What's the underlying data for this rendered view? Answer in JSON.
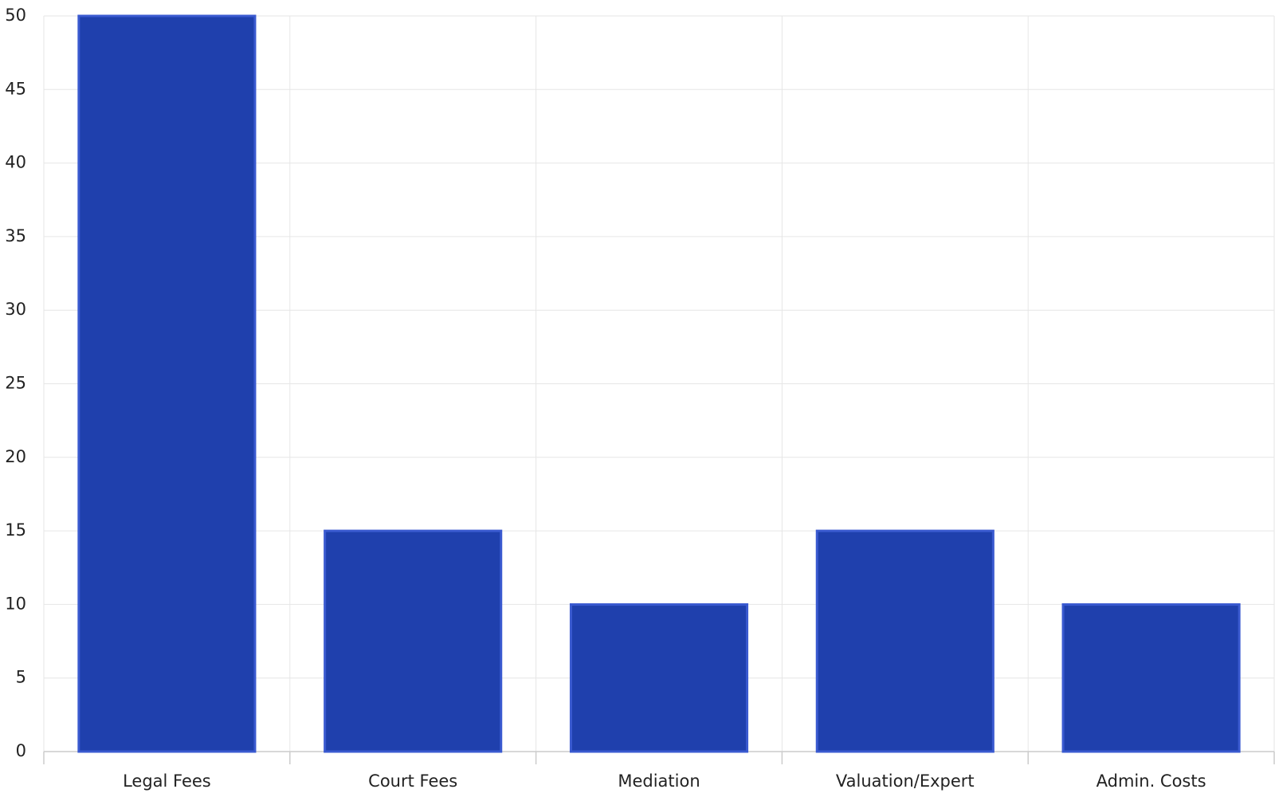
{
  "chart_data": {
    "type": "bar",
    "categories": [
      "Legal Fees",
      "Court Fees",
      "Mediation",
      "Valuation/Expert",
      "Admin. Costs"
    ],
    "values": [
      50,
      15,
      10,
      15,
      10
    ],
    "color": "#1f40ad",
    "ylim": [
      0,
      50
    ],
    "yticks": [
      0,
      5,
      10,
      15,
      20,
      25,
      30,
      35,
      40,
      45,
      50
    ],
    "grid": true
  }
}
